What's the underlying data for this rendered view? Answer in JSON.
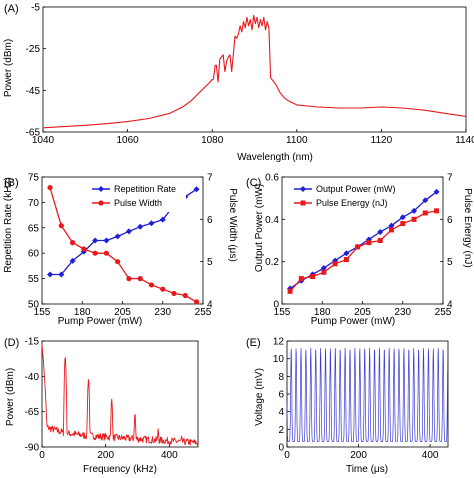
{
  "chart_data": [
    {
      "id": "A",
      "panel_label": "(A)",
      "type": "line",
      "xlabel": "Wavelength (nm)",
      "ylabel": "Power (dBm)",
      "xlim": [
        1040,
        1140
      ],
      "ylim": [
        -65,
        -5
      ],
      "xticks": [
        1040,
        1060,
        1080,
        1100,
        1120,
        1140
      ],
      "yticks": [
        -65,
        -45,
        -25,
        -5
      ],
      "grid": false,
      "color": "#e8191c",
      "series": [
        {
          "x": [
            1040,
            1045,
            1050,
            1055,
            1060,
            1065,
            1070,
            1073,
            1075,
            1077,
            1078,
            1079,
            1079.5,
            1079.8,
            1080,
            1080.3,
            1080.7,
            1081,
            1081.4,
            1081.8,
            1082.2,
            1082.6,
            1083,
            1083.4,
            1083.8,
            1084.2,
            1084.6,
            1085,
            1085.4,
            1085.8,
            1086.2,
            1086.6,
            1087,
            1087.4,
            1087.8,
            1088.2,
            1088.6,
            1089,
            1089.4,
            1089.8,
            1090.2,
            1090.6,
            1091,
            1091.4,
            1091.8,
            1092.2,
            1092.6,
            1093,
            1093.4,
            1093.8,
            1094.2,
            1094.6,
            1095,
            1096,
            1097,
            1098,
            1100,
            1105,
            1110,
            1115,
            1120,
            1125,
            1130,
            1135,
            1140
          ],
          "y": [
            -63,
            -62.4,
            -61.8,
            -61,
            -60,
            -58.5,
            -56,
            -53,
            -50,
            -46,
            -44,
            -42,
            -41,
            -40,
            -40,
            -39.5,
            -33,
            -33,
            -41,
            -30,
            -29,
            -28,
            -36,
            -31,
            -29,
            -28,
            -36,
            -28,
            -19,
            -20,
            -18,
            -14,
            -17,
            -12,
            -15,
            -10,
            -14,
            -11,
            -16,
            -9,
            -13,
            -10,
            -15,
            -11,
            -14,
            -10,
            -16,
            -12,
            -15,
            -39,
            -40,
            -41,
            -42,
            -46,
            -48.5,
            -50,
            -52,
            -53,
            -53.5,
            -53.5,
            -53,
            -53.5,
            -54.5,
            -56,
            -57.5
          ]
        }
      ]
    },
    {
      "id": "B",
      "panel_label": "(B)",
      "type": "line",
      "xlabel": "Pump Power (mW)",
      "ylabel": "Repetition Rate (kHz)",
      "y2label": "Pulse Width (μs)",
      "xlim": [
        155,
        255
      ],
      "ylim": [
        50,
        75
      ],
      "y2lim": [
        4,
        7
      ],
      "xticks": [
        155,
        180,
        205,
        230,
        255
      ],
      "yticks": [
        50,
        55,
        60,
        65,
        70,
        75
      ],
      "y2ticks": [
        4,
        5,
        6,
        7
      ],
      "grid": false,
      "legend_position": "top-right",
      "x": [
        160,
        167,
        174,
        181,
        188,
        195,
        202,
        209,
        216,
        223,
        230,
        237,
        244,
        251
      ],
      "series": [
        {
          "name": "Repetition Rate",
          "axis": "left",
          "color": "#1f1fd6",
          "marker": "diamond",
          "values": [
            55.8,
            55.8,
            58.5,
            60.3,
            62.5,
            62.5,
            63.3,
            64.3,
            65.2,
            65.9,
            66.6,
            69.4,
            71.1,
            72.6
          ]
        },
        {
          "name": "Pulse Width",
          "axis": "right",
          "color": "#e8191c",
          "marker": "circle",
          "values": [
            6.75,
            5.85,
            5.45,
            5.3,
            5.2,
            5.2,
            5.0,
            4.6,
            4.6,
            4.45,
            4.35,
            4.25,
            4.2,
            4.05
          ]
        }
      ]
    },
    {
      "id": "C",
      "panel_label": "(C)",
      "type": "line",
      "xlabel": "Pump Power (mW)",
      "ylabel": "Output Power (mW)",
      "y2label": "Pulse Energy (nJ)",
      "xlim": [
        155,
        255
      ],
      "ylim": [
        0,
        0.6
      ],
      "y2lim": [
        4,
        7
      ],
      "xticks": [
        155,
        180,
        205,
        230,
        255
      ],
      "yticks": [
        0,
        0.2,
        0.4,
        0.6
      ],
      "y2ticks": [
        4,
        5,
        6,
        7
      ],
      "grid": false,
      "legend_position": "top-left",
      "x": [
        160,
        167,
        174,
        181,
        188,
        195,
        202,
        209,
        216,
        223,
        230,
        237,
        244,
        251
      ],
      "series": [
        {
          "name": "Output Power (mW)",
          "axis": "left",
          "color": "#1f1fd6",
          "marker": "diamond",
          "values": [
            0.073,
            0.11,
            0.14,
            0.17,
            0.205,
            0.24,
            0.27,
            0.305,
            0.34,
            0.37,
            0.41,
            0.44,
            0.49,
            0.53
          ]
        },
        {
          "name": "Pulse Energy (nJ)",
          "axis": "right",
          "color": "#e8191c",
          "marker": "square",
          "values": [
            4.3,
            4.6,
            4.65,
            4.75,
            4.95,
            5.05,
            5.35,
            5.45,
            5.5,
            5.75,
            5.9,
            6.0,
            6.15,
            6.2
          ]
        }
      ]
    },
    {
      "id": "D",
      "panel_label": "(D)",
      "type": "line",
      "xlabel": "Frequency (kHz)",
      "ylabel": "Power (dBm)",
      "xlim": [
        0,
        490
      ],
      "ylim": [
        -90,
        -15
      ],
      "xticks": [
        0,
        200,
        400
      ],
      "yticks": [
        -90,
        -65,
        -40,
        -15
      ],
      "grid": false,
      "color": "#e8191c",
      "harmonics_khz": [
        0,
        73,
        146,
        219,
        292,
        365,
        438
      ],
      "harmonic_peaks_dbm": [
        -18,
        -26,
        -42,
        -56,
        -66,
        -77,
        -82
      ],
      "noise_floor_dbm": [
        -75,
        -80,
        -82,
        -83,
        -84,
        -85,
        -86,
        -87
      ]
    },
    {
      "id": "E",
      "panel_label": "(E)",
      "type": "line",
      "xlabel": "Time (μs)",
      "ylabel": "Voltage (mV)",
      "xlim": [
        0,
        450
      ],
      "ylim": [
        0,
        12
      ],
      "xticks": [
        0,
        200,
        400
      ],
      "yticks": [
        0,
        2,
        4,
        6,
        8,
        10,
        12
      ],
      "grid": false,
      "color": "#3b3bd6",
      "pulse_period_us": 13.7,
      "pulse_min_mv": 0.6,
      "pulse_max_mv": 11.2
    }
  ]
}
